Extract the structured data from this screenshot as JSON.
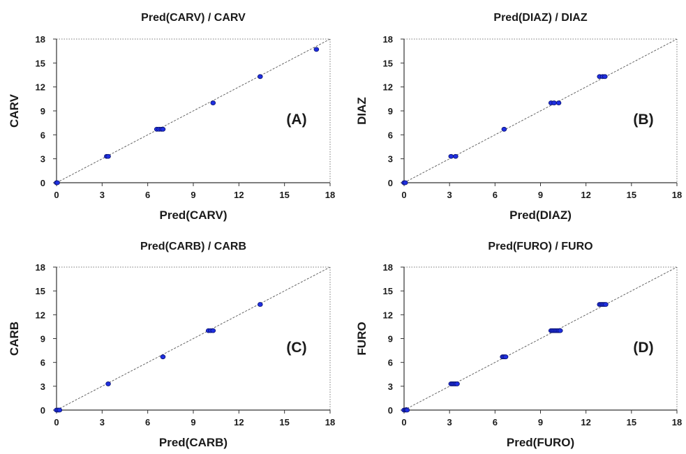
{
  "chart_data": [
    {
      "type": "scatter",
      "title": "Pred(CARV) / CARV",
      "xlabel": "Pred(CARV)",
      "ylabel": "CARV",
      "panel_label": "(A)",
      "xlim": [
        0,
        18
      ],
      "ylim": [
        0,
        18
      ],
      "xticks": [
        "0",
        "3",
        "6",
        "9",
        "12",
        "15",
        "18"
      ],
      "yticks": [
        "0",
        "3",
        "6",
        "9",
        "12",
        "15",
        "18"
      ],
      "reference_line": "y = x",
      "grid": false,
      "marker_color": "#1f2fe0",
      "points": [
        {
          "x": 0.0,
          "y": 0.0
        },
        {
          "x": 0.05,
          "y": 0.0
        },
        {
          "x": 3.3,
          "y": 3.3
        },
        {
          "x": 3.4,
          "y": 3.3
        },
        {
          "x": 6.6,
          "y": 6.7
        },
        {
          "x": 6.75,
          "y": 6.7
        },
        {
          "x": 6.9,
          "y": 6.7
        },
        {
          "x": 7.0,
          "y": 6.7
        },
        {
          "x": 10.3,
          "y": 10.0
        },
        {
          "x": 13.4,
          "y": 13.3
        },
        {
          "x": 17.1,
          "y": 16.7
        }
      ]
    },
    {
      "type": "scatter",
      "title": "Pred(DIAZ) / DIAZ",
      "xlabel": "Pred(DIAZ)",
      "ylabel": "DIAZ",
      "panel_label": "(B)",
      "xlim": [
        0,
        18
      ],
      "ylim": [
        0,
        18
      ],
      "xticks": [
        "0",
        "3",
        "6",
        "9",
        "12",
        "15",
        "18"
      ],
      "yticks": [
        "0",
        "3",
        "6",
        "9",
        "12",
        "15",
        "18"
      ],
      "reference_line": "y = x",
      "grid": false,
      "marker_color": "#1f2fe0",
      "points": [
        {
          "x": 0.0,
          "y": 0.0
        },
        {
          "x": 0.08,
          "y": 0.0
        },
        {
          "x": 3.1,
          "y": 3.3
        },
        {
          "x": 3.4,
          "y": 3.3
        },
        {
          "x": 6.6,
          "y": 6.7
        },
        {
          "x": 9.7,
          "y": 10.0
        },
        {
          "x": 9.9,
          "y": 10.0
        },
        {
          "x": 10.2,
          "y": 10.0
        },
        {
          "x": 12.9,
          "y": 13.3
        },
        {
          "x": 13.1,
          "y": 13.3
        },
        {
          "x": 13.25,
          "y": 13.3
        }
      ]
    },
    {
      "type": "scatter",
      "title": "Pred(CARB) / CARB",
      "xlabel": "Pred(CARB)",
      "ylabel": "CARB",
      "panel_label": "(C)",
      "xlim": [
        0,
        18
      ],
      "ylim": [
        0,
        18
      ],
      "xticks": [
        "0",
        "3",
        "6",
        "9",
        "12",
        "15",
        "18"
      ],
      "yticks": [
        "0",
        "3",
        "6",
        "9",
        "12",
        "15",
        "18"
      ],
      "reference_line": "y = x",
      "grid": false,
      "marker_color": "#1f2fe0",
      "points": [
        {
          "x": 0.0,
          "y": 0.0
        },
        {
          "x": 0.1,
          "y": 0.0
        },
        {
          "x": 0.2,
          "y": 0.0
        },
        {
          "x": 3.4,
          "y": 3.3
        },
        {
          "x": 7.0,
          "y": 6.7
        },
        {
          "x": 10.0,
          "y": 10.0
        },
        {
          "x": 10.15,
          "y": 10.0
        },
        {
          "x": 10.3,
          "y": 10.0
        },
        {
          "x": 13.4,
          "y": 13.3
        }
      ]
    },
    {
      "type": "scatter",
      "title": "Pred(FURO) / FURO",
      "xlabel": "Pred(FURO)",
      "ylabel": "FURO",
      "panel_label": "(D)",
      "xlim": [
        0,
        18
      ],
      "ylim": [
        0,
        18
      ],
      "xticks": [
        "0",
        "3",
        "6",
        "9",
        "12",
        "15",
        "18"
      ],
      "yticks": [
        "0",
        "3",
        "6",
        "9",
        "12",
        "15",
        "18"
      ],
      "reference_line": "y = x",
      "grid": false,
      "marker_color": "#1f2fe0",
      "points": [
        {
          "x": 0.0,
          "y": 0.0
        },
        {
          "x": 0.1,
          "y": 0.0
        },
        {
          "x": 0.15,
          "y": 0.05
        },
        {
          "x": 0.2,
          "y": 0.0
        },
        {
          "x": 3.1,
          "y": 3.3
        },
        {
          "x": 3.2,
          "y": 3.3
        },
        {
          "x": 3.3,
          "y": 3.3
        },
        {
          "x": 3.4,
          "y": 3.3
        },
        {
          "x": 3.5,
          "y": 3.3
        },
        {
          "x": 6.5,
          "y": 6.7
        },
        {
          "x": 6.6,
          "y": 6.7
        },
        {
          "x": 6.7,
          "y": 6.7
        },
        {
          "x": 9.7,
          "y": 10.0
        },
        {
          "x": 9.8,
          "y": 10.0
        },
        {
          "x": 9.9,
          "y": 10.0
        },
        {
          "x": 10.0,
          "y": 10.0
        },
        {
          "x": 10.1,
          "y": 10.0
        },
        {
          "x": 10.2,
          "y": 10.0
        },
        {
          "x": 10.3,
          "y": 10.0
        },
        {
          "x": 12.9,
          "y": 13.3
        },
        {
          "x": 13.0,
          "y": 13.3
        },
        {
          "x": 13.1,
          "y": 13.3
        },
        {
          "x": 13.2,
          "y": 13.3
        },
        {
          "x": 13.3,
          "y": 13.3
        }
      ]
    }
  ]
}
